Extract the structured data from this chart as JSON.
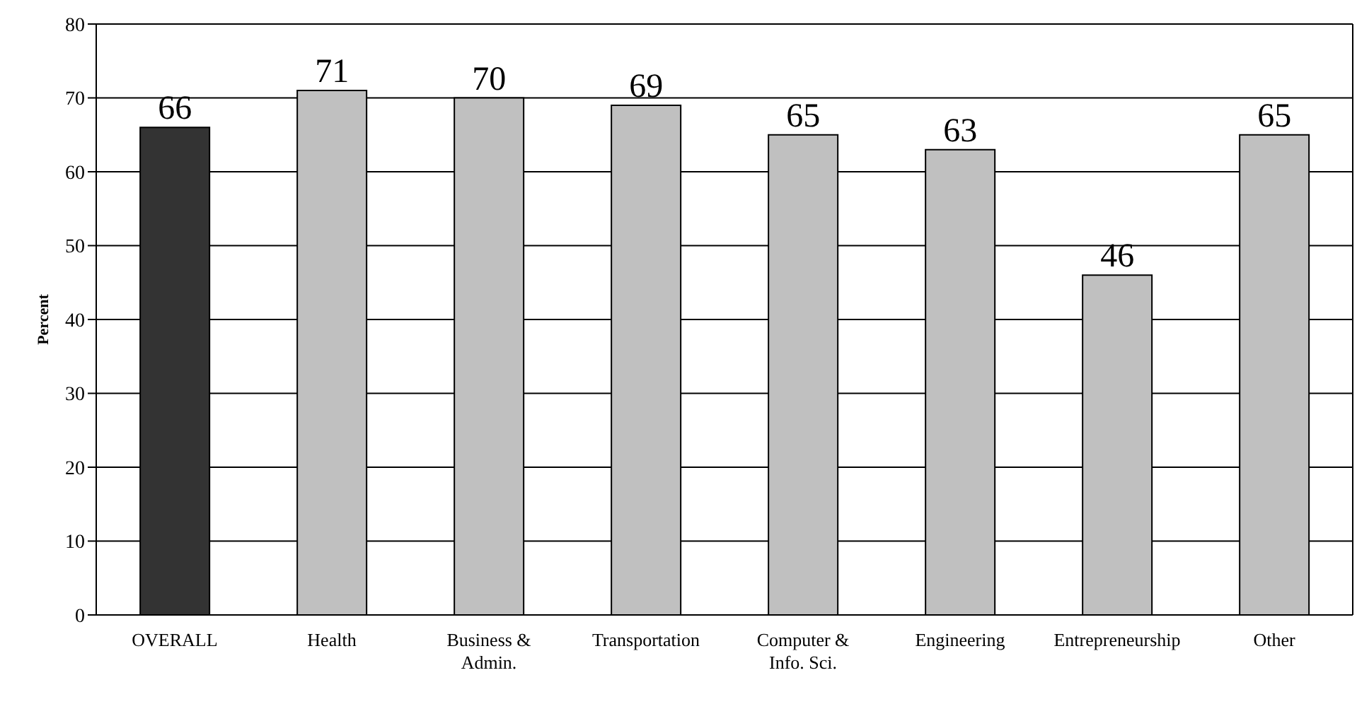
{
  "chart_data": {
    "type": "bar",
    "ylabel": "Percent",
    "categories": [
      "OVERALL",
      "Health",
      "Business & Admin.",
      "Transportation",
      "Computer & Info. Sci.",
      "Engineering",
      "Entrepreneurship",
      "Other"
    ],
    "values": [
      66,
      71,
      70,
      69,
      65,
      63,
      46,
      65
    ],
    "colors": [
      "#333333",
      "#c0c0c0",
      "#c0c0c0",
      "#c0c0c0",
      "#c0c0c0",
      "#c0c0c0",
      "#c0c0c0",
      "#c0c0c0"
    ],
    "ylim": [
      0,
      80
    ],
    "yticks": [
      0,
      10,
      20,
      30,
      40,
      50,
      60,
      70,
      80
    ],
    "grid": "y",
    "data_labels": true,
    "legend": false
  }
}
